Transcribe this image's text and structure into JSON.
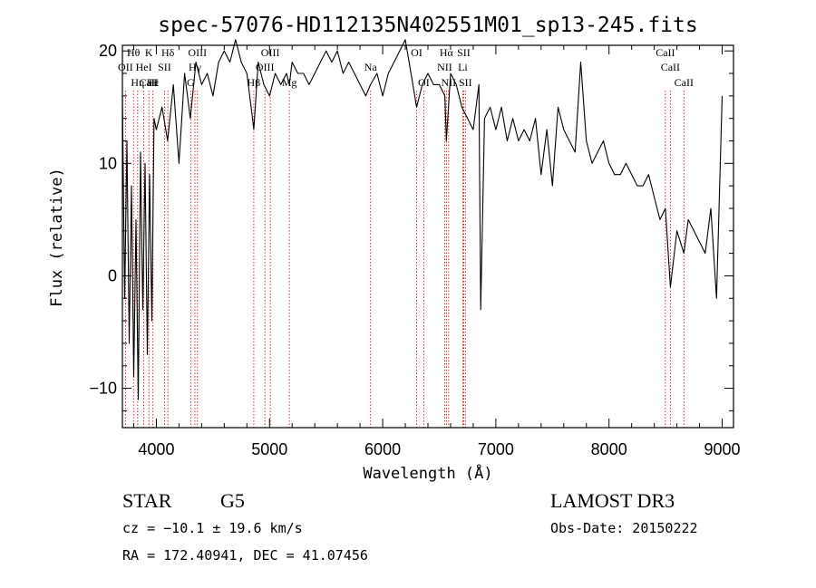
{
  "chart_data": {
    "type": "line",
    "title": "spec-57076-HD112135N402551M01_sp13-245.fits",
    "xlabel": "Wavelength (Å)",
    "ylabel": "Flux (relative)",
    "xlim": [
      3700,
      9100
    ],
    "ylim": [
      -13.5,
      20.5
    ],
    "x_ticks": [
      4000,
      5000,
      6000,
      7000,
      8000,
      9000
    ],
    "y_ticks": [
      -10,
      0,
      10,
      20
    ],
    "x": [
      3700,
      3720,
      3740,
      3760,
      3780,
      3800,
      3820,
      3840,
      3860,
      3880,
      3900,
      3920,
      3940,
      3960,
      3980,
      4000,
      4050,
      4100,
      4150,
      4200,
      4250,
      4300,
      4350,
      4400,
      4450,
      4500,
      4550,
      4600,
      4650,
      4700,
      4750,
      4800,
      4850,
      4861,
      4900,
      4950,
      5000,
      5050,
      5100,
      5150,
      5175,
      5200,
      5250,
      5300,
      5350,
      5400,
      5450,
      5500,
      5550,
      5600,
      5650,
      5700,
      5750,
      5800,
      5850,
      5893,
      5950,
      6000,
      6050,
      6100,
      6150,
      6200,
      6250,
      6300,
      6350,
      6400,
      6450,
      6500,
      6550,
      6563,
      6600,
      6650,
      6700,
      6750,
      6800,
      6850,
      6866,
      6900,
      6950,
      7000,
      7050,
      7100,
      7150,
      7200,
      7250,
      7300,
      7350,
      7400,
      7450,
      7500,
      7550,
      7600,
      7650,
      7700,
      7750,
      7800,
      7850,
      7900,
      7950,
      8000,
      8050,
      8100,
      8150,
      8200,
      8250,
      8300,
      8350,
      8400,
      8450,
      8498,
      8542,
      8600,
      8662,
      8700,
      8750,
      8800,
      8850,
      8900,
      8950,
      9000
    ],
    "y": [
      16,
      -2,
      12,
      -6,
      8,
      -9,
      5,
      -11,
      11,
      -3,
      10,
      -7,
      9,
      -4,
      14,
      13,
      15,
      12,
      17,
      10,
      18,
      14,
      19,
      17,
      18,
      16,
      19,
      20,
      19,
      21,
      19,
      18,
      14,
      13,
      19,
      17,
      16,
      18,
      17,
      18,
      17,
      19,
      18,
      18,
      17,
      18,
      19,
      20,
      19,
      20,
      18,
      19,
      18,
      17,
      16,
      17,
      18,
      16,
      18,
      19,
      20,
      21,
      18,
      15,
      17,
      18,
      17,
      17,
      16,
      12,
      18,
      17,
      15,
      14,
      13,
      17,
      -3,
      14,
      15,
      13,
      15,
      12,
      14,
      12,
      13,
      12,
      14,
      9,
      13,
      8,
      15,
      13,
      12,
      11,
      19,
      12,
      10,
      11,
      12,
      10,
      9,
      9,
      10,
      9,
      8,
      8,
      9,
      7,
      5,
      6,
      -1,
      4,
      2,
      5,
      4,
      3,
      2,
      6,
      -2,
      16
    ],
    "spectral_lines": [
      {
        "name": "CaII",
        "x": 3934,
        "row": 3
      },
      {
        "name": "Hε",
        "x": 3970,
        "row": 3
      },
      {
        "name": "Hη",
        "x": 3835,
        "row": 3
      },
      {
        "name": "H",
        "x": 3970,
        "row": 3
      },
      {
        "name": "OII",
        "x": 3727,
        "row": 2
      },
      {
        "name": "HeI",
        "x": 3889,
        "row": 2
      },
      {
        "name": "SII",
        "x": 4072,
        "row": 2
      },
      {
        "name": "Hθ",
        "x": 3798,
        "row": 1
      },
      {
        "name": "K",
        "x": 3934,
        "row": 1
      },
      {
        "name": "Hδ",
        "x": 4102,
        "row": 1
      },
      {
        "name": "OIII",
        "x": 4363,
        "row": 1
      },
      {
        "name": "Hγ",
        "x": 4341,
        "row": 2
      },
      {
        "name": "G",
        "x": 4304,
        "row": 3
      },
      {
        "name": "Hβ",
        "x": 4861,
        "row": 3
      },
      {
        "name": "OIII",
        "x": 5007,
        "row": 1
      },
      {
        "name": "OIII",
        "x": 4959,
        "row": 2
      },
      {
        "name": "Mg",
        "x": 5175,
        "row": 3
      },
      {
        "name": "Na",
        "x": 5893,
        "row": 2
      },
      {
        "name": "OI",
        "x": 6300,
        "row": 1
      },
      {
        "name": "OI",
        "x": 6363,
        "row": 3
      },
      {
        "name": "Hα",
        "x": 6563,
        "row": 1
      },
      {
        "name": "NII",
        "x": 6548,
        "row": 2
      },
      {
        "name": "NII",
        "x": 6583,
        "row": 3
      },
      {
        "name": "SII",
        "x": 6716,
        "row": 1
      },
      {
        "name": "Li",
        "x": 6708,
        "row": 2
      },
      {
        "name": "SII",
        "x": 6731,
        "row": 3
      },
      {
        "name": "CaII",
        "x": 8498,
        "row": 1
      },
      {
        "name": "CaII",
        "x": 8542,
        "row": 2
      },
      {
        "name": "CaII",
        "x": 8662,
        "row": 3
      }
    ],
    "grid": false
  },
  "footer": {
    "object_class": "STAR",
    "subclass": "G5",
    "survey": "LAMOST DR3",
    "cz": "cz = −10.1 ± 19.6 km/s",
    "obs_date": "Obs-Date: 20150222",
    "coords": "RA = 172.40941, DEC =  41.07456"
  },
  "colors": {
    "spectrum": "#000000",
    "line_markers": "#cc0000",
    "axes": "#000000"
  }
}
